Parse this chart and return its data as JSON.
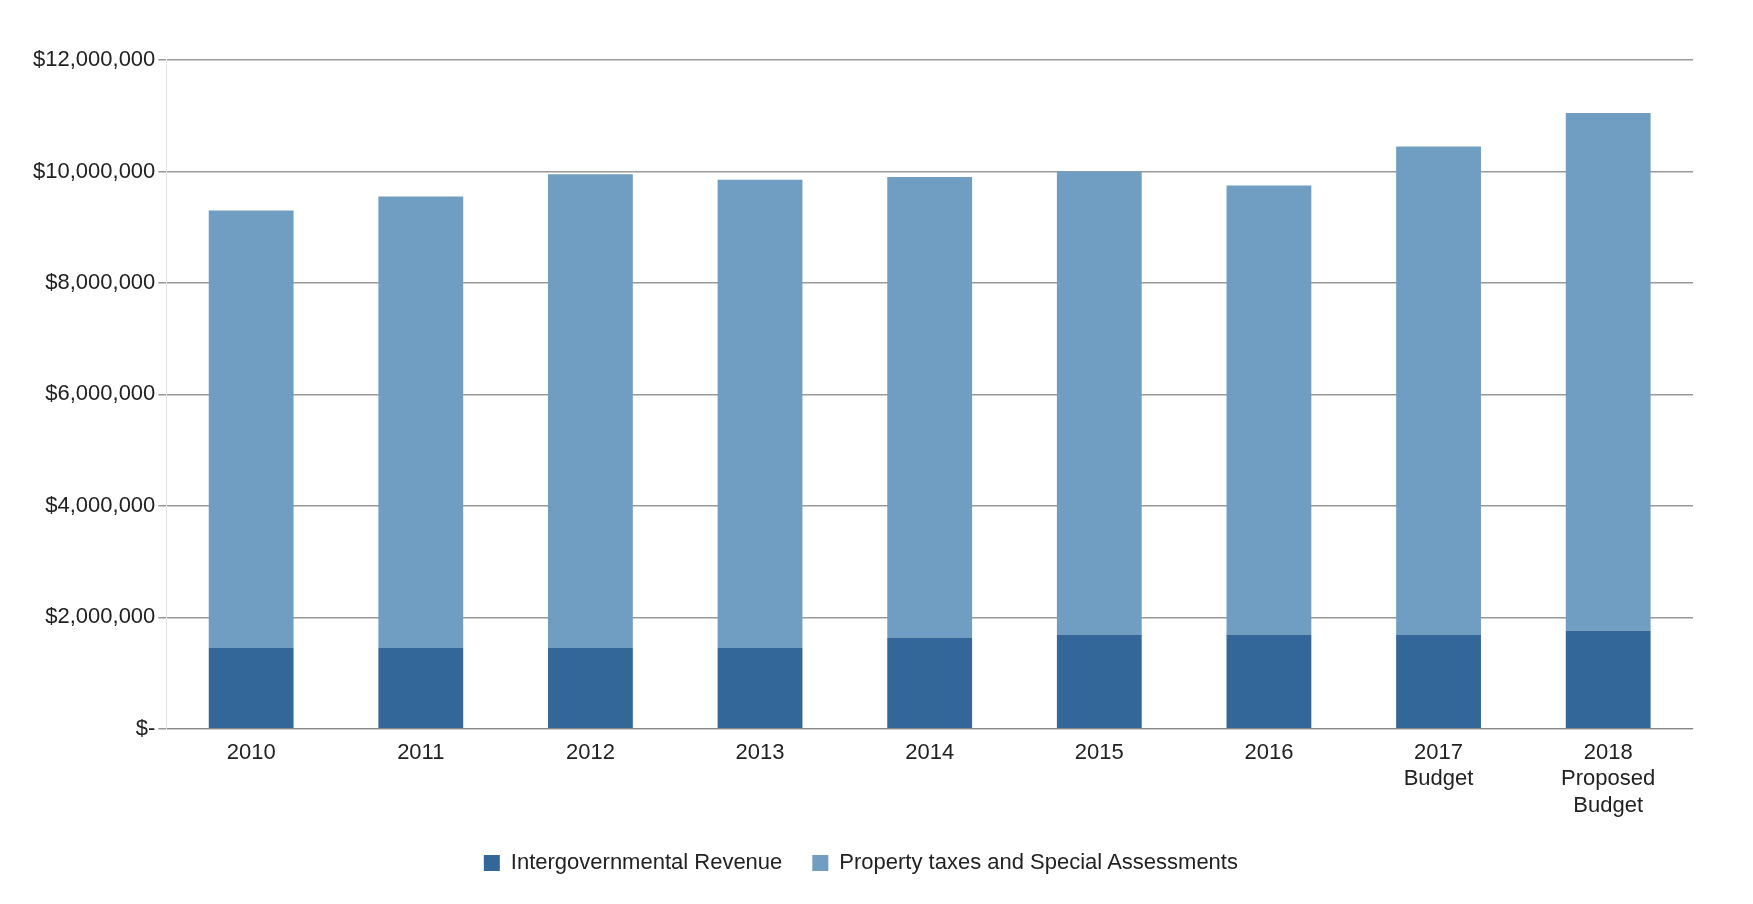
{
  "chart_data": {
    "type": "bar",
    "stacked": true,
    "categories": [
      "2010",
      "2011",
      "2012",
      "2013",
      "2014",
      "2015",
      "2016",
      "2017 Budget",
      "2018 Proposed Budget"
    ],
    "series": [
      {
        "name": "Intergovernmental Revenue",
        "color": "#336699",
        "values": [
          1450000,
          1450000,
          1450000,
          1450000,
          1640000,
          1690000,
          1690000,
          1690000,
          1760000
        ]
      },
      {
        "name": "Property taxes and Special Assessments",
        "color": "#6f9ec2",
        "values": [
          7850000,
          8100000,
          8500000,
          8400000,
          8260000,
          8310000,
          8060000,
          8760000,
          9290000
        ]
      }
    ],
    "ylim": [
      0,
      12000000
    ],
    "yticks": [
      {
        "value": 0,
        "label": "$-"
      },
      {
        "value": 2000000,
        "label": "$2,000,000"
      },
      {
        "value": 4000000,
        "label": "$4,000,000"
      },
      {
        "value": 6000000,
        "label": "$6,000,000"
      },
      {
        "value": 8000000,
        "label": "$8,000,000"
      },
      {
        "value": 10000000,
        "label": "$10,000,000"
      },
      {
        "value": 12000000,
        "label": "$12,000,000"
      }
    ],
    "grid": "y",
    "legend": "bottom"
  }
}
